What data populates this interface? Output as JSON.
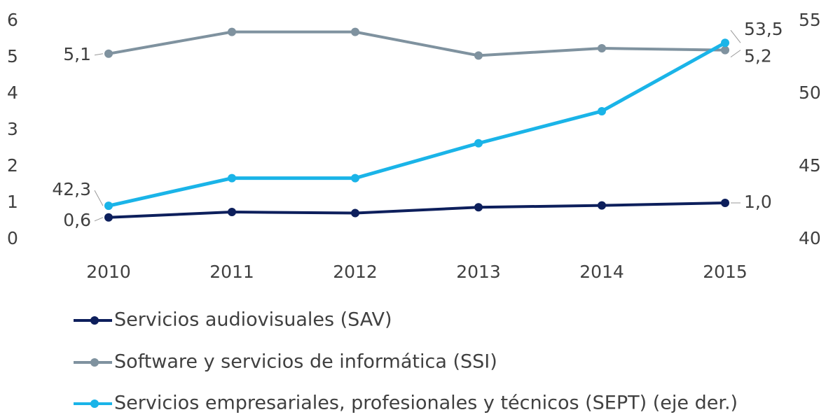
{
  "chart_data": {
    "type": "line",
    "x": [
      "2010",
      "2011",
      "2012",
      "2013",
      "2014",
      "2015"
    ],
    "series": [
      {
        "name": "Servicios audiovisuales (SAV)",
        "color": "#0d1f5c",
        "values": [
          0.6,
          0.75,
          0.72,
          0.88,
          0.93,
          1.0
        ],
        "value_labels": [
          "0,6",
          null,
          null,
          null,
          null,
          "1,0"
        ]
      },
      {
        "name": "Software y servicios de informática (SSI)",
        "color": "#7f929f",
        "values": [
          5.1,
          5.7,
          5.7,
          5.05,
          5.25,
          5.2
        ],
        "value_labels": [
          "5,1",
          null,
          null,
          null,
          null,
          "5,2"
        ]
      },
      {
        "name": "Servicios empresariales, profesionales y técnicos (SEPT) (eje der.)",
        "color": "#1ab4e8",
        "axis": "y2",
        "values": [
          42.3,
          44.2,
          44.2,
          46.6,
          48.8,
          53.5
        ],
        "value_labels": [
          "42,3",
          null,
          null,
          null,
          null,
          "53,5"
        ]
      }
    ],
    "ylim": [
      0,
      6
    ],
    "yticks": [
      0,
      1,
      2,
      3,
      4,
      5,
      6
    ],
    "y2lim": [
      40,
      55
    ],
    "y2ticks": [
      40,
      45,
      50,
      55
    ],
    "grid": false
  }
}
